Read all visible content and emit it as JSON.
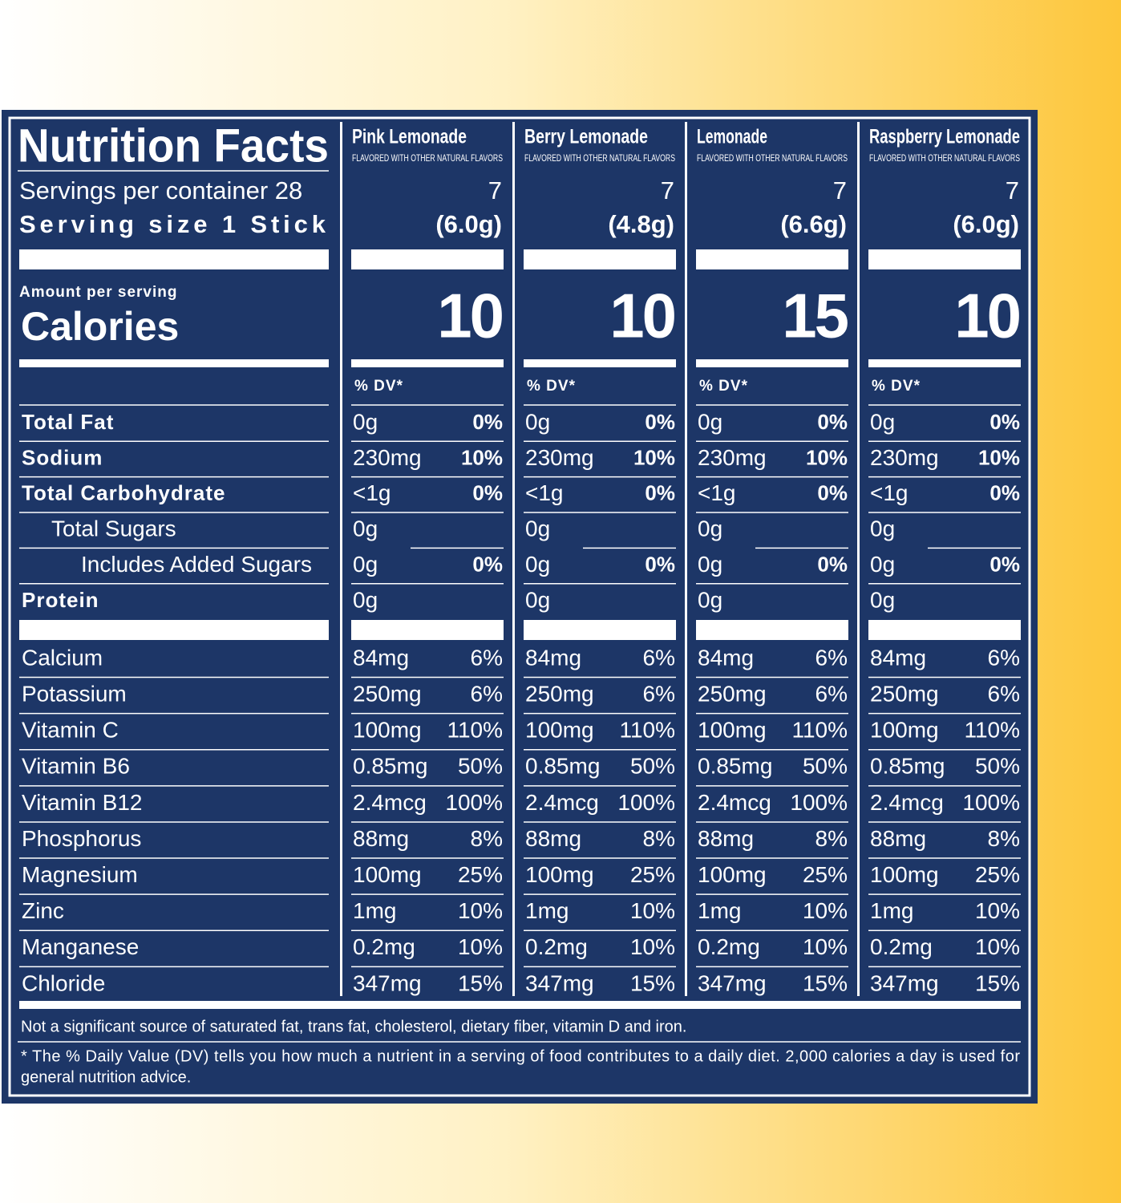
{
  "header": {
    "title": "Nutrition Facts",
    "servings_label": "Servings per container 28",
    "serving_size_label": "Serving size  1 Stick",
    "amount_label": "Amount per serving",
    "calories_label": "Calories",
    "dv_label": "% DV*"
  },
  "products": [
    {
      "name": "Pink Lemonade",
      "subtitle": "FLAVORED WITH OTHER NATURAL FLAVORS",
      "servings": "7",
      "serving_size": "(6.0g)",
      "calories": "10"
    },
    {
      "name": "Berry Lemonade",
      "subtitle": "FLAVORED WITH OTHER NATURAL FLAVORS",
      "servings": "7",
      "serving_size": "(4.8g)",
      "calories": "10"
    },
    {
      "name": "Lemonade",
      "subtitle": "FLAVORED WITH OTHER NATURAL FLAVORS",
      "servings": "7",
      "serving_size": "(6.6g)",
      "calories": "15"
    },
    {
      "name": "Raspberry Lemonade",
      "subtitle": "FLAVORED WITH OTHER NATURAL FLAVORS",
      "servings": "7",
      "serving_size": "(6.0g)",
      "calories": "10"
    }
  ],
  "nutrients": [
    {
      "label": "Total Fat",
      "bold": true,
      "indent": 0,
      "cells": [
        [
          "0g",
          "0%"
        ],
        [
          "0g",
          "0%"
        ],
        [
          "0g",
          "0%"
        ],
        [
          "0g",
          "0%"
        ]
      ]
    },
    {
      "label": "Sodium",
      "bold": true,
      "indent": 0,
      "cells": [
        [
          "230mg",
          "10%"
        ],
        [
          "230mg",
          "10%"
        ],
        [
          "230mg",
          "10%"
        ],
        [
          "230mg",
          "10%"
        ]
      ]
    },
    {
      "label": "Total Carbohydrate",
      "bold": true,
      "indent": 0,
      "cells": [
        [
          "<1g",
          "0%"
        ],
        [
          "<1g",
          "0%"
        ],
        [
          "<1g",
          "0%"
        ],
        [
          "<1g",
          "0%"
        ]
      ]
    },
    {
      "label": "Total Sugars",
      "bold": false,
      "indent": 1,
      "cells": [
        [
          "0g"
        ],
        [
          "0g"
        ],
        [
          "0g"
        ],
        [
          "0g"
        ]
      ]
    },
    {
      "label": "Includes Added Sugars",
      "bold": false,
      "indent": 2,
      "cells": [
        [
          "0g",
          "0%"
        ],
        [
          "0g",
          "0%"
        ],
        [
          "0g",
          "0%"
        ],
        [
          "0g",
          "0%"
        ]
      ]
    },
    {
      "label": "Protein",
      "bold": true,
      "indent": 0,
      "cells": [
        [
          "0g"
        ],
        [
          "0g"
        ],
        [
          "0g"
        ],
        [
          "0g"
        ]
      ]
    }
  ],
  "minerals": [
    {
      "label": "Calcium",
      "cells": [
        [
          "84mg",
          "6%"
        ],
        [
          "84mg",
          "6%"
        ],
        [
          "84mg",
          "6%"
        ],
        [
          "84mg",
          "6%"
        ]
      ]
    },
    {
      "label": "Potassium",
      "cells": [
        [
          "250mg",
          "6%"
        ],
        [
          "250mg",
          "6%"
        ],
        [
          "250mg",
          "6%"
        ],
        [
          "250mg",
          "6%"
        ]
      ]
    },
    {
      "label": "Vitamin C",
      "cells": [
        [
          "100mg",
          "110%"
        ],
        [
          "100mg",
          "110%"
        ],
        [
          "100mg",
          "110%"
        ],
        [
          "100mg",
          "110%"
        ]
      ]
    },
    {
      "label": "Vitamin B6",
      "cells": [
        [
          "0.85mg",
          "50%"
        ],
        [
          "0.85mg",
          "50%"
        ],
        [
          "0.85mg",
          "50%"
        ],
        [
          "0.85mg",
          "50%"
        ]
      ]
    },
    {
      "label": "Vitamin B12",
      "cells": [
        [
          "2.4mcg",
          "100%"
        ],
        [
          "2.4mcg",
          "100%"
        ],
        [
          "2.4mcg",
          "100%"
        ],
        [
          "2.4mcg",
          "100%"
        ]
      ]
    },
    {
      "label": "Phosphorus",
      "cells": [
        [
          "88mg",
          "8%"
        ],
        [
          "88mg",
          "8%"
        ],
        [
          "88mg",
          "8%"
        ],
        [
          "88mg",
          "8%"
        ]
      ]
    },
    {
      "label": "Magnesium",
      "cells": [
        [
          "100mg",
          "25%"
        ],
        [
          "100mg",
          "25%"
        ],
        [
          "100mg",
          "25%"
        ],
        [
          "100mg",
          "25%"
        ]
      ]
    },
    {
      "label": "Zinc",
      "cells": [
        [
          "1mg",
          "10%"
        ],
        [
          "1mg",
          "10%"
        ],
        [
          "1mg",
          "10%"
        ],
        [
          "1mg",
          "10%"
        ]
      ]
    },
    {
      "label": "Manganese",
      "cells": [
        [
          "0.2mg",
          "10%"
        ],
        [
          "0.2mg",
          "10%"
        ],
        [
          "0.2mg",
          "10%"
        ],
        [
          "0.2mg",
          "10%"
        ]
      ]
    },
    {
      "label": "Chloride",
      "cells": [
        [
          "347mg",
          "15%"
        ],
        [
          "347mg",
          "15%"
        ],
        [
          "347mg",
          "15%"
        ],
        [
          "347mg",
          "15%"
        ]
      ]
    }
  ],
  "footer": {
    "note": "Not a significant source of saturated fat, trans fat, cholesterol, dietary fiber, vitamin D and iron.",
    "dv": [
      "* The % Daily Value (DV) tells you how much a nutrient in a serving of food contributes to a daily diet. 2,000 calories a day is used for",
      "general nutrition advice."
    ]
  }
}
